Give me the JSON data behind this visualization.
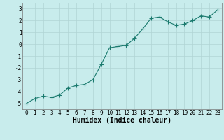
{
  "x": [
    0,
    1,
    2,
    3,
    4,
    5,
    6,
    7,
    8,
    9,
    10,
    11,
    12,
    13,
    14,
    15,
    16,
    17,
    18,
    19,
    20,
    21,
    22,
    23
  ],
  "y": [
    -5.0,
    -4.6,
    -4.4,
    -4.5,
    -4.3,
    -3.7,
    -3.5,
    -3.4,
    -3.0,
    -1.7,
    -0.3,
    -0.2,
    -0.1,
    0.5,
    1.3,
    2.2,
    2.3,
    1.9,
    1.6,
    1.7,
    2.0,
    2.4,
    2.3,
    2.9
  ],
  "xlabel": "Humidex (Indice chaleur)",
  "line_color": "#1a7a6e",
  "marker_color": "#1a7a6e",
  "bg_color": "#c8ecec",
  "grid_color": "#b0d4d4",
  "ylim": [
    -5.5,
    3.5
  ],
  "xlim": [
    -0.5,
    23.5
  ],
  "yticks": [
    -5,
    -4,
    -3,
    -2,
    -1,
    0,
    1,
    2,
    3
  ],
  "xticks": [
    0,
    1,
    2,
    3,
    4,
    5,
    6,
    7,
    8,
    9,
    10,
    11,
    12,
    13,
    14,
    15,
    16,
    17,
    18,
    19,
    20,
    21,
    22,
    23
  ],
  "tick_fontsize": 5.5,
  "xlabel_fontsize": 7,
  "marker_size": 2.0,
  "line_width": 0.8
}
